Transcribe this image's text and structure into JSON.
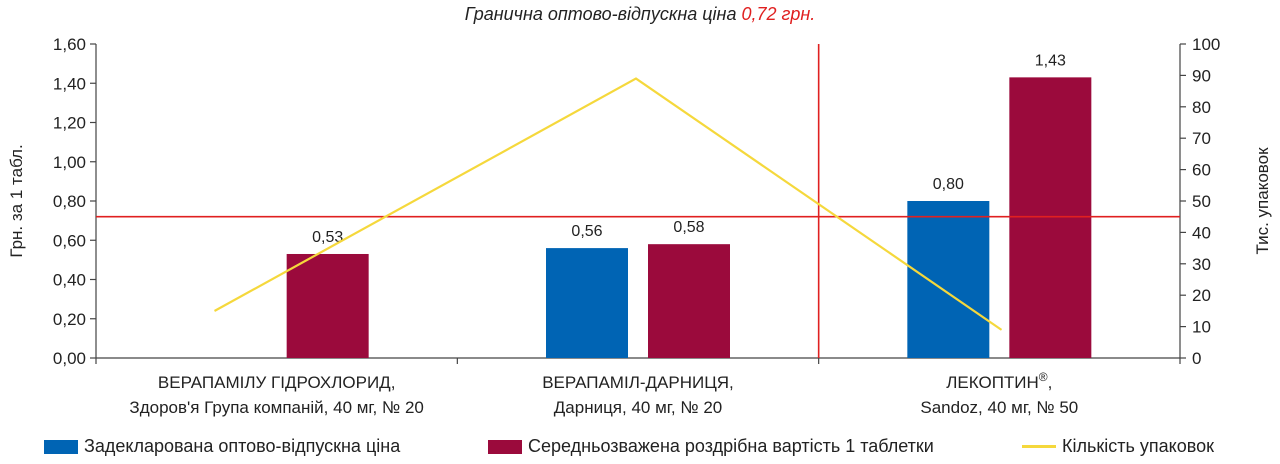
{
  "chart_data": {
    "type": "bar",
    "title_prefix": "Гранична оптово-відпускна ціна ",
    "title_value": "0,72 грн.",
    "threshold": 0.72,
    "threshold_color": "#e02020",
    "ylabel": "Грн. за 1 табл.",
    "ylabel_right": "Тис. упаковок",
    "ylim": [
      0,
      1.6
    ],
    "ylim_right": [
      0,
      100
    ],
    "yticks": [
      "0,00",
      "0,20",
      "0,40",
      "0,60",
      "0,80",
      "1,00",
      "1,20",
      "1,40",
      "1,60"
    ],
    "yticks_right": [
      "0",
      "10",
      "20",
      "30",
      "40",
      "50",
      "60",
      "70",
      "80",
      "90",
      "100"
    ],
    "categories": [
      {
        "line1": "ВЕРАПАМІЛУ ГІДРОХЛОРИД,",
        "line1_sup": "",
        "line1_after": "",
        "line2": "Здоров'я Група компаній, 40 мг, № 20"
      },
      {
        "line1": "ВЕРАПАМІЛ-ДАРНИЦЯ,",
        "line1_sup": "",
        "line1_after": "",
        "line2": "Дарниця, 40 мг, № 20"
      },
      {
        "line1": "ЛЕКОПТИН",
        "line1_sup": "®",
        "line1_after": ",",
        "line2": "Sandoz, 40 мг, № 50"
      }
    ],
    "series": [
      {
        "name": "Задекларована оптово-відпускна ціна",
        "color": "#0064b4",
        "values": [
          null,
          0.56,
          0.8
        ],
        "labels": [
          "",
          "0,56",
          "0,80"
        ]
      },
      {
        "name": "Середньозважена роздрібна вартість 1 таблетки",
        "color": "#9b0a3c",
        "values": [
          0.53,
          0.58,
          1.43
        ],
        "labels": [
          "0,53",
          "0,58",
          "1,43"
        ]
      },
      {
        "name": "Кількість упаковок",
        "color": "#f5d83c",
        "type": "line",
        "axis": "right",
        "values": [
          15,
          89,
          9
        ]
      }
    ],
    "legend_position": "bottom",
    "grid": false
  }
}
